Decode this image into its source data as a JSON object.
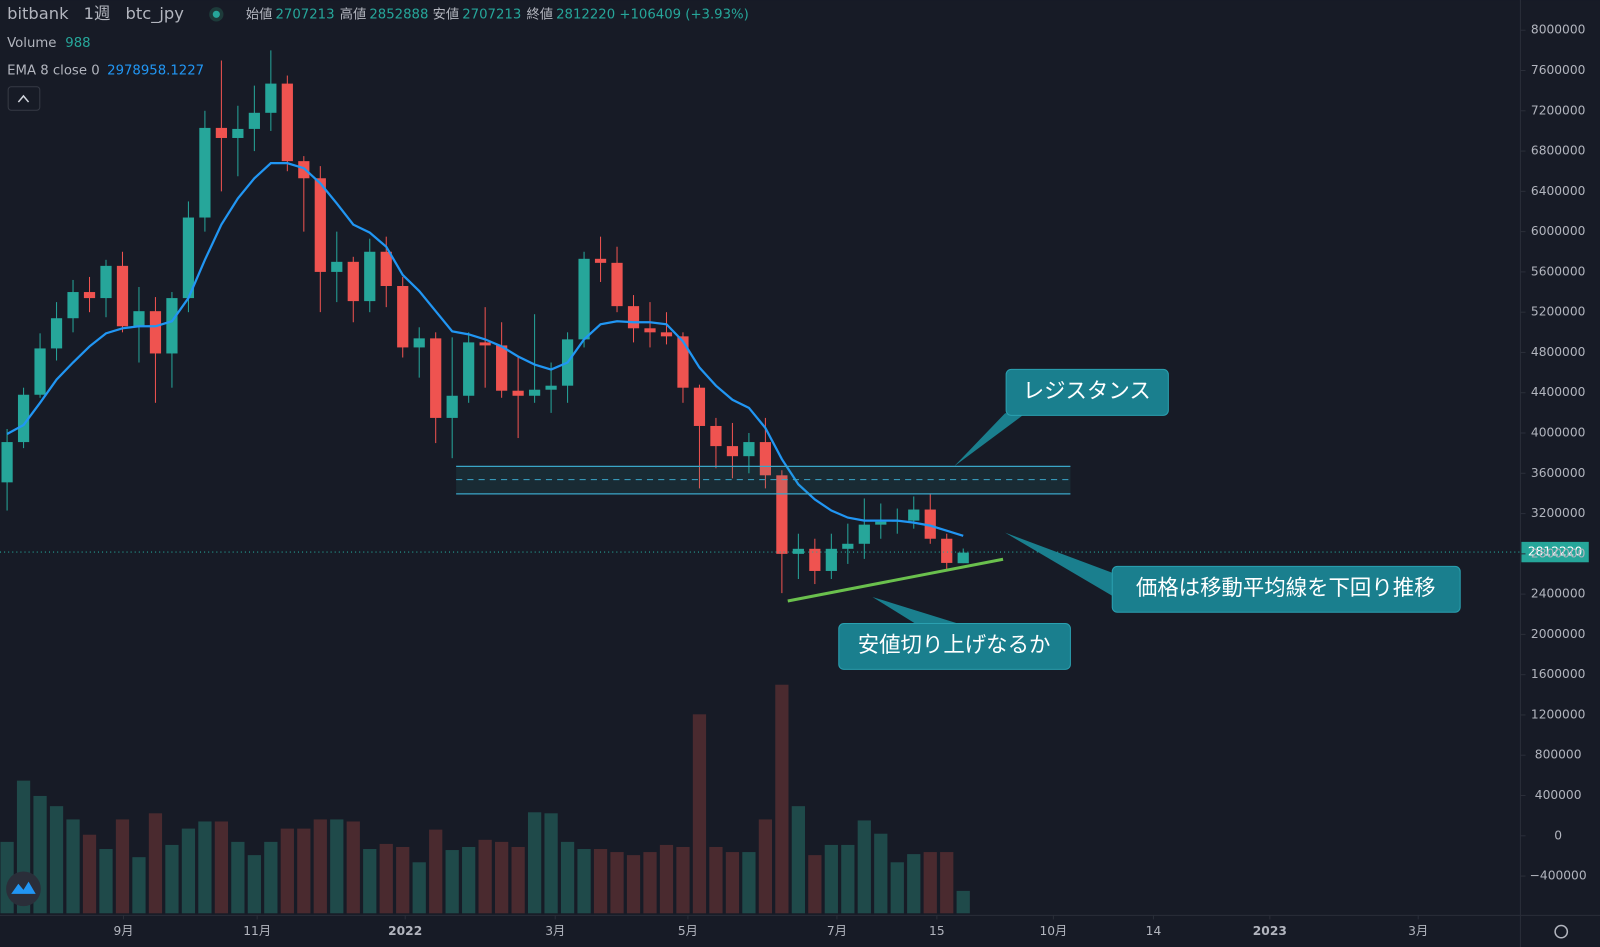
{
  "header": {
    "exchange": "bitbank",
    "interval": "1週",
    "symbol": "btc_jpy",
    "open_label": "始値",
    "high_label": "高値",
    "low_label": "安値",
    "close_label": "終値",
    "change": "+106409 (+3.93%)"
  },
  "chart_data": {
    "type": "candlestick",
    "x": [
      0,
      1,
      2,
      3,
      4,
      5,
      6,
      7,
      8,
      9,
      10,
      11,
      12,
      13,
      14,
      15,
      16,
      17,
      18,
      19,
      20,
      21,
      22,
      23,
      24,
      25,
      26,
      27,
      28,
      29,
      30,
      31,
      32,
      33,
      34,
      35,
      36,
      37,
      38,
      39,
      40,
      41,
      42,
      43,
      44,
      45,
      46,
      47,
      48,
      49,
      50,
      51,
      52,
      53,
      54,
      55,
      56,
      57,
      58
    ],
    "open": [
      3510000,
      3910000,
      4380000,
      4840000,
      5140000,
      5400000,
      5340000,
      5660000,
      5060000,
      5210000,
      4790000,
      5340000,
      6140000,
      7030000,
      6930000,
      7020000,
      7180000,
      7470000,
      6700000,
      6530000,
      5600000,
      5700000,
      5310000,
      5800000,
      5460000,
      4850000,
      4940000,
      4150000,
      4370000,
      4900000,
      4870000,
      4420000,
      4370000,
      4430000,
      4470000,
      4930000,
      5730000,
      5690000,
      5260000,
      5040000,
      5000000,
      4960000,
      4450000,
      4070000,
      3870000,
      3770000,
      3910000,
      3580000,
      2800000,
      2850000,
      2630000,
      2850000,
      2900000,
      3090000,
      3120000,
      3130000,
      3240000,
      2950000,
      2707213
    ],
    "high": [
      4040000,
      4450000,
      4990000,
      5300000,
      5520000,
      5550000,
      5720000,
      5800000,
      5450000,
      5350000,
      5400000,
      6300000,
      7200000,
      7700000,
      7250000,
      7450000,
      7800000,
      7550000,
      6750000,
      6650000,
      6000000,
      5750000,
      5930000,
      5950000,
      5550000,
      5050000,
      5000000,
      4950000,
      5000000,
      5250000,
      5100000,
      4750000,
      5180000,
      4700000,
      5000000,
      5800000,
      5950000,
      5850000,
      5370000,
      5300000,
      5200000,
      5000000,
      4480000,
      4150000,
      4100000,
      4000000,
      4150000,
      3630000,
      3000000,
      2950000,
      3000000,
      3100000,
      3350000,
      3300000,
      3250000,
      3370000,
      3400000,
      3000000,
      2852888
    ],
    "low": [
      3230000,
      3850000,
      4350000,
      4720000,
      5000000,
      5200000,
      5150000,
      5000000,
      4700000,
      4300000,
      4450000,
      5200000,
      6000000,
      6400000,
      6550000,
      6800000,
      7000000,
      6600000,
      6000000,
      5200000,
      5300000,
      5100000,
      5200000,
      5250000,
      4750000,
      4550000,
      3900000,
      3750000,
      4300000,
      4450000,
      4350000,
      3950000,
      4300000,
      4200000,
      4300000,
      4850000,
      5500000,
      5200000,
      4900000,
      4850000,
      4880000,
      4300000,
      3450000,
      3650000,
      3550000,
      3600000,
      3450000,
      2410000,
      2550000,
      2500000,
      2550000,
      2700000,
      2750000,
      2950000,
      3000000,
      3050000,
      2900000,
      2650000,
      2707213
    ],
    "close": [
      3910000,
      4380000,
      4840000,
      5140000,
      5400000,
      5340000,
      5660000,
      5060000,
      5210000,
      4790000,
      5340000,
      6140000,
      7030000,
      6930000,
      7020000,
      7180000,
      7470000,
      6700000,
      6530000,
      5600000,
      5700000,
      5310000,
      5800000,
      5460000,
      4850000,
      4940000,
      4150000,
      4370000,
      4900000,
      4870000,
      4420000,
      4370000,
      4430000,
      4470000,
      4930000,
      5730000,
      5690000,
      5260000,
      5040000,
      5000000,
      4960000,
      4450000,
      4070000,
      3870000,
      3770000,
      3910000,
      3580000,
      2800000,
      2850000,
      2630000,
      2850000,
      2900000,
      3090000,
      3120000,
      3130000,
      3240000,
      2950000,
      2710000,
      2812220
    ],
    "up_color": "#26a69a",
    "down_color": "#ef5350",
    "ema": {
      "name": "EMA 8 close 0",
      "color": "#2196f3",
      "values": [
        3990000,
        4080000,
        4300000,
        4530000,
        4700000,
        4860000,
        4990000,
        5040000,
        5060000,
        5060000,
        5110000,
        5340000,
        5720000,
        6070000,
        6330000,
        6530000,
        6680000,
        6680000,
        6630000,
        6480000,
        6280000,
        6070000,
        5990000,
        5850000,
        5570000,
        5410000,
        5210000,
        5010000,
        4980000,
        4930000,
        4860000,
        4760000,
        4680000,
        4630000,
        4700000,
        4930000,
        5080000,
        5110000,
        5100000,
        5100000,
        5080000,
        4910000,
        4650000,
        4470000,
        4330000,
        4250000,
        4050000,
        3740000,
        3490000,
        3340000,
        3230000,
        3160000,
        3130000,
        3130000,
        3130000,
        3110000,
        3080000,
        3030000,
        2978958.1227
      ]
    },
    "volume": {
      "name": "Volume",
      "up_color": "#1f4a4a",
      "down_color": "#4a2a2f",
      "values": [
        3150,
        5850,
        5175,
        4725,
        4140,
        3465,
        2835,
        4140,
        2475,
        4410,
        3015,
        3735,
        4050,
        4050,
        3150,
        2565,
        3150,
        3735,
        3735,
        4140,
        4140,
        4050,
        2835,
        3060,
        2925,
        2250,
        3690,
        2790,
        2925,
        3240,
        3150,
        2925,
        4455,
        4410,
        3150,
        2835,
        2835,
        2700,
        2565,
        2700,
        3015,
        2925,
        8775,
        2925,
        2700,
        2700,
        4140,
        10080,
        4725,
        2565,
        3015,
        3015,
        4095,
        3510,
        2250,
        2610,
        2700,
        2700,
        988
      ]
    },
    "xlim": [
      -0.43,
      91.8
    ],
    "xticks": [
      {
        "value": 7.06,
        "label": "9月"
      },
      {
        "value": 15.17,
        "label": "11月"
      },
      {
        "value": 24.15,
        "label": "2022"
      },
      {
        "value": 33.25,
        "label": "3月"
      },
      {
        "value": 41.3,
        "label": "5月"
      },
      {
        "value": 50.34,
        "label": "7月"
      },
      {
        "value": 56.4,
        "label": "15"
      },
      {
        "value": 63.47,
        "label": "10月"
      },
      {
        "value": 69.54,
        "label": "14"
      },
      {
        "value": 76.6,
        "label": "2023"
      },
      {
        "value": 85.6,
        "label": "3月"
      }
    ],
    "ylim": [
      -790000,
      8300000
    ],
    "yticks": [
      {
        "value": -400000,
        "label": "−400000"
      },
      0,
      400000,
      800000,
      1200000,
      1600000,
      2000000,
      2400000,
      2800000,
      3200000,
      3600000,
      4000000,
      4400000,
      4800000,
      5200000,
      5600000,
      6000000,
      6400000,
      6800000,
      7200000,
      7600000,
      8000000
    ],
    "annotations": [
      "レジスタンス",
      "価格は移動平均線を下回り推移",
      "安値切り上げなるか"
    ]
  }
}
